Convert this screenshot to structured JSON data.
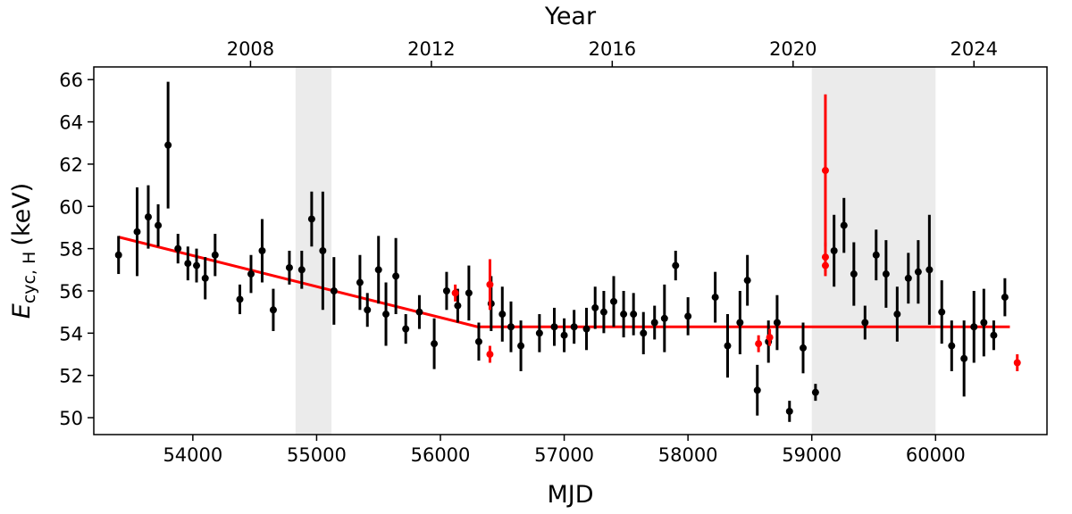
{
  "chart_data": {
    "type": "scatter",
    "xlabel": "MJD",
    "x2label": "Year",
    "ylabel_main": "E",
    "ylabel_sub": "cyc, H",
    "ylabel_unit": "(keV)",
    "xlim": [
      53200,
      60900
    ],
    "ylim": [
      49.2,
      66.6
    ],
    "xticks": [
      54000,
      55000,
      56000,
      57000,
      58000,
      59000,
      60000
    ],
    "yticks": [
      50,
      52,
      54,
      56,
      58,
      60,
      62,
      64,
      66
    ],
    "top_axis": {
      "ticks": [
        {
          "label": "2008",
          "mjd": 54466
        },
        {
          "label": "2012",
          "mjd": 55927
        },
        {
          "label": "2016",
          "mjd": 57388
        },
        {
          "label": "2020",
          "mjd": 58849
        },
        {
          "label": "2024",
          "mjd": 60310
        }
      ]
    },
    "shaded_regions": [
      {
        "x0": 54830,
        "x1": 55120,
        "color": "#ebebeb"
      },
      {
        "x0": 59000,
        "x1": 60000,
        "color": "#ebebeb"
      }
    ],
    "fit_line": {
      "color": "#ff0000",
      "points": [
        [
          53400,
          58.55
        ],
        [
          56300,
          54.3
        ],
        [
          60600,
          54.3
        ]
      ]
    },
    "series": [
      {
        "color": "#000000",
        "points": [
          [
            53400,
            57.7,
            0.9
          ],
          [
            53550,
            58.8,
            2.1
          ],
          [
            53640,
            59.5,
            1.5
          ],
          [
            53720,
            59.1,
            1.0
          ],
          [
            53800,
            62.9,
            3.0
          ],
          [
            53880,
            58.0,
            0.7
          ],
          [
            53960,
            57.3,
            0.8
          ],
          [
            54030,
            57.2,
            0.8
          ],
          [
            54100,
            56.6,
            1.0
          ],
          [
            54180,
            57.7,
            1.0
          ],
          [
            54380,
            55.6,
            0.7
          ],
          [
            54470,
            56.8,
            0.9
          ],
          [
            54560,
            57.9,
            1.5
          ],
          [
            54650,
            55.1,
            1.0
          ],
          [
            54780,
            57.1,
            0.8
          ],
          [
            54880,
            57.0,
            0.9
          ],
          [
            54960,
            59.4,
            1.3
          ],
          [
            55050,
            57.9,
            2.8
          ],
          [
            55140,
            56.0,
            1.6
          ],
          [
            55350,
            56.4,
            1.3
          ],
          [
            55410,
            55.1,
            0.8
          ],
          [
            55500,
            57.0,
            1.6
          ],
          [
            55560,
            54.9,
            1.5
          ],
          [
            55640,
            56.7,
            1.8
          ],
          [
            55720,
            54.2,
            0.7
          ],
          [
            55830,
            55.0,
            0.8
          ],
          [
            55950,
            53.5,
            1.2
          ],
          [
            56050,
            56.0,
            0.9
          ],
          [
            56140,
            55.3,
            0.8
          ],
          [
            56230,
            55.9,
            1.3
          ],
          [
            56310,
            53.6,
            0.9
          ],
          [
            56410,
            55.4,
            1.3
          ],
          [
            56500,
            54.9,
            1.3
          ],
          [
            56570,
            54.3,
            1.2
          ],
          [
            56650,
            53.4,
            1.2
          ],
          [
            56800,
            54.0,
            0.9
          ],
          [
            56920,
            54.3,
            0.9
          ],
          [
            57000,
            53.9,
            0.8
          ],
          [
            57080,
            54.3,
            0.8
          ],
          [
            57180,
            54.2,
            1.0
          ],
          [
            57250,
            55.2,
            1.0
          ],
          [
            57320,
            55.0,
            1.0
          ],
          [
            57400,
            55.5,
            1.2
          ],
          [
            57480,
            54.9,
            1.1
          ],
          [
            57560,
            54.9,
            1.0
          ],
          [
            57640,
            54.0,
            1.0
          ],
          [
            57730,
            54.5,
            0.8
          ],
          [
            57810,
            54.7,
            1.6
          ],
          [
            57900,
            57.2,
            0.7
          ],
          [
            58000,
            54.8,
            0.9
          ],
          [
            58220,
            55.7,
            1.2
          ],
          [
            58320,
            53.4,
            1.5
          ],
          [
            58420,
            54.5,
            1.5
          ],
          [
            58480,
            56.5,
            1.2
          ],
          [
            58560,
            51.3,
            1.2
          ],
          [
            58650,
            53.6,
            1.0
          ],
          [
            58720,
            54.5,
            1.3
          ],
          [
            58820,
            50.3,
            0.5
          ],
          [
            58930,
            53.3,
            1.2
          ],
          [
            59030,
            51.2,
            0.4
          ],
          [
            59180,
            57.9,
            1.7
          ],
          [
            59260,
            59.1,
            1.3
          ],
          [
            59340,
            56.8,
            1.5
          ],
          [
            59430,
            54.5,
            0.8
          ],
          [
            59520,
            57.7,
            1.2
          ],
          [
            59600,
            56.8,
            1.6
          ],
          [
            59690,
            54.9,
            1.3
          ],
          [
            59780,
            56.6,
            1.2
          ],
          [
            59860,
            56.9,
            1.5
          ],
          [
            59950,
            57.0,
            2.6
          ],
          [
            60050,
            55.0,
            1.5
          ],
          [
            60130,
            53.4,
            1.2
          ],
          [
            60230,
            52.8,
            1.8
          ],
          [
            60310,
            54.3,
            1.7
          ],
          [
            60390,
            54.5,
            1.6
          ],
          [
            60470,
            53.9,
            0.7
          ],
          [
            60560,
            55.7,
            0.9
          ]
        ]
      },
      {
        "color": "#ff0000",
        "points": [
          [
            56120,
            55.9,
            0.4
          ],
          [
            56400,
            56.3,
            1.2
          ],
          [
            56400,
            53.0,
            0.4
          ],
          [
            58570,
            53.5,
            0.4
          ],
          [
            58660,
            53.8,
            0.4
          ],
          [
            59110,
            61.7,
            3.6
          ],
          [
            59110,
            57.6,
            0.7
          ],
          [
            59110,
            57.2,
            0.5
          ],
          [
            60660,
            52.6,
            0.4
          ]
        ]
      }
    ]
  }
}
